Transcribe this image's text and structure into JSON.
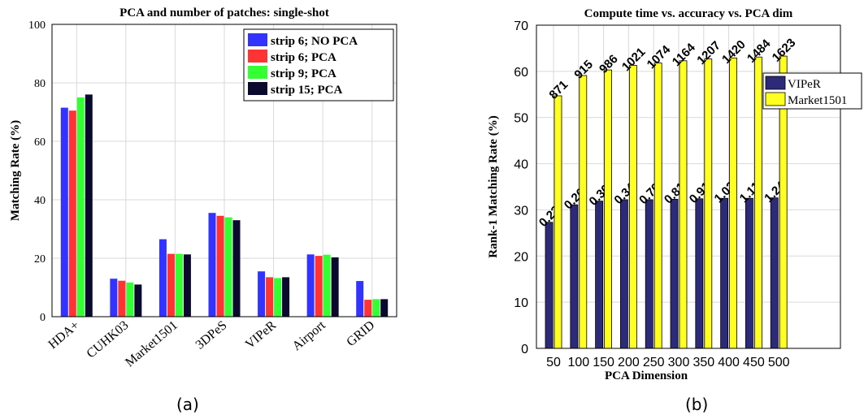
{
  "figure": {
    "caption_a": "(a)",
    "caption_b": "(b)"
  },
  "chart_data": [
    {
      "type": "bar",
      "title": "PCA and number of patches: single-shot",
      "xlabel": "",
      "ylabel": "Matching Rate (%)",
      "ylim": [
        0,
        100
      ],
      "yticks": [
        0,
        20,
        40,
        60,
        80,
        100
      ],
      "grid": true,
      "legend_position": "top-right",
      "categories": [
        "HDA+",
        "CUHK03",
        "Market1501",
        "3DPeS",
        "VIPeR",
        "Airport",
        "GRID"
      ],
      "series": [
        {
          "name": "strip 6; NO PCA",
          "color": "#3333ff",
          "values": [
            71.5,
            13,
            26.5,
            35.5,
            15.5,
            21.3,
            12.2
          ]
        },
        {
          "name": "strip 6; PCA",
          "color": "#ff3333",
          "values": [
            70.5,
            12.3,
            21.5,
            34.5,
            13.5,
            20.8,
            5.8
          ]
        },
        {
          "name": "strip 9; PCA",
          "color": "#33ff33",
          "values": [
            75,
            11.7,
            21.5,
            34,
            13.2,
            21.2,
            6
          ]
        },
        {
          "name": "strip 15; PCA",
          "color": "#0a0a2e",
          "values": [
            76,
            11,
            21.3,
            33,
            13.5,
            20.3,
            6
          ]
        }
      ]
    },
    {
      "type": "bar",
      "title": "Compute time vs. accuracy vs. PCA dim",
      "xlabel": "PCA Dimension",
      "ylabel": "Rank-1 Matching Rate (%)",
      "ylim": [
        0,
        70
      ],
      "yticks": [
        0,
        10,
        20,
        30,
        40,
        50,
        60,
        70
      ],
      "grid": true,
      "legend_position": "top-right",
      "categories": [
        "50",
        "100",
        "150",
        "200",
        "250",
        "300",
        "350",
        "400",
        "450",
        "500"
      ],
      "series": [
        {
          "name": "VIPeR",
          "color": "#2e2a7a",
          "values": [
            27.3,
            31.1,
            31.9,
            32.2,
            32.2,
            32.3,
            32.4,
            32.5,
            32.5,
            32.6
          ],
          "labels": [
            "0.23",
            "0.26",
            "0.30",
            "0.34",
            "0.70",
            "0.81",
            "0.91",
            "1.02",
            "1.11",
            "1.24"
          ]
        },
        {
          "name": "Market1501",
          "color": "#ffff22",
          "values": [
            54.7,
            59.1,
            60.3,
            61.3,
            61.8,
            62.3,
            62.7,
            62.9,
            63.1,
            63.3
          ],
          "labels": [
            "871",
            "915",
            "986",
            "1021",
            "1074",
            "1164",
            "1207",
            "1420",
            "1484",
            "1623"
          ]
        }
      ]
    }
  ]
}
